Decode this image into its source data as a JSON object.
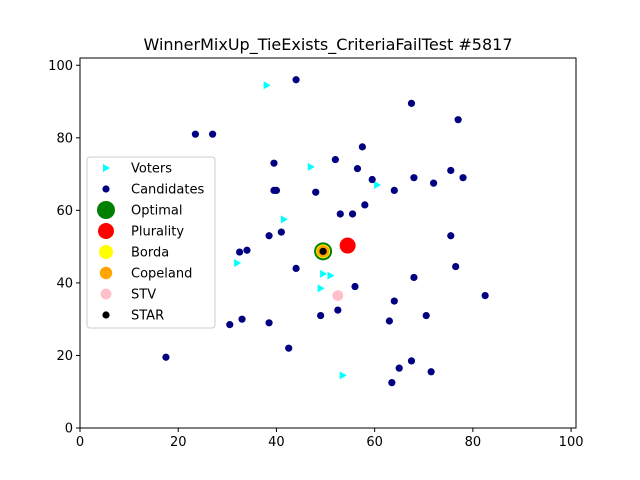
{
  "chart_data": {
    "type": "scatter",
    "title": "WinnerMixUp_TieExists_CriteriaFailTest #5817",
    "xlabel": "",
    "ylabel": "",
    "xlim": [
      0,
      101
    ],
    "ylim": [
      0,
      102
    ],
    "xticks": [
      0,
      20,
      40,
      60,
      80,
      100
    ],
    "yticks": [
      0,
      20,
      40,
      60,
      80,
      100
    ],
    "grid": false,
    "legend_position": "center-left",
    "series": [
      {
        "name": "Voters",
        "marker": "triangle-right",
        "color": "#00ffff",
        "points": [
          [
            38,
            94.5
          ],
          [
            47,
            72
          ],
          [
            60.5,
            67
          ],
          [
            41.5,
            57.5
          ],
          [
            32,
            45.5
          ],
          [
            49.5,
            42.5
          ],
          [
            51,
            42
          ],
          [
            49,
            38.5
          ],
          [
            53.5,
            14.5
          ]
        ]
      },
      {
        "name": "Candidates",
        "marker": "circle",
        "color": "#000080",
        "points": [
          [
            44,
            96
          ],
          [
            67.5,
            89.5
          ],
          [
            77,
            85
          ],
          [
            23.5,
            81
          ],
          [
            27,
            81
          ],
          [
            57.5,
            77.5
          ],
          [
            52,
            74
          ],
          [
            39.5,
            73
          ],
          [
            56.5,
            71.5
          ],
          [
            75.5,
            71
          ],
          [
            59.5,
            68.5
          ],
          [
            68,
            69
          ],
          [
            78,
            69
          ],
          [
            72,
            67.5
          ],
          [
            39.5,
            65.5
          ],
          [
            40,
            65.5
          ],
          [
            48,
            65
          ],
          [
            64,
            65.5
          ],
          [
            58,
            61.5
          ],
          [
            53,
            59
          ],
          [
            55.5,
            59
          ],
          [
            41,
            54
          ],
          [
            38.5,
            53
          ],
          [
            75.5,
            53
          ],
          [
            32.5,
            48.5
          ],
          [
            34,
            49
          ],
          [
            44,
            44
          ],
          [
            76.5,
            44.5
          ],
          [
            68,
            41.5
          ],
          [
            56,
            39
          ],
          [
            82.5,
            36.5
          ],
          [
            64,
            35
          ],
          [
            52.5,
            32.5
          ],
          [
            49,
            31
          ],
          [
            70.5,
            31
          ],
          [
            33,
            30
          ],
          [
            38.5,
            29
          ],
          [
            30.5,
            28.5
          ],
          [
            63,
            29.5
          ],
          [
            42.5,
            22
          ],
          [
            17.5,
            19.5
          ],
          [
            67.5,
            18.5
          ],
          [
            65,
            16.5
          ],
          [
            71.5,
            15.5
          ],
          [
            63.5,
            12.5
          ]
        ]
      },
      {
        "name": "Optimal",
        "marker": "circle",
        "color": "#008000",
        "points": [
          [
            49.5,
            48.7
          ]
        ]
      },
      {
        "name": "Plurality",
        "marker": "circle",
        "color": "#ff0000",
        "points": [
          [
            54.5,
            50.3
          ]
        ]
      },
      {
        "name": "Borda",
        "marker": "circle",
        "color": "#ffff00",
        "points": [
          [
            49.5,
            48.7
          ]
        ]
      },
      {
        "name": "Copeland",
        "marker": "circle",
        "color": "#ffa500",
        "points": [
          [
            49.5,
            48.7
          ]
        ]
      },
      {
        "name": "STV",
        "marker": "circle",
        "color": "#ffc0cb",
        "points": [
          [
            52.5,
            36.5
          ]
        ]
      },
      {
        "name": "STAR",
        "marker": "circle",
        "color": "#000000",
        "points": [
          [
            49.5,
            48.7
          ]
        ]
      }
    ]
  }
}
